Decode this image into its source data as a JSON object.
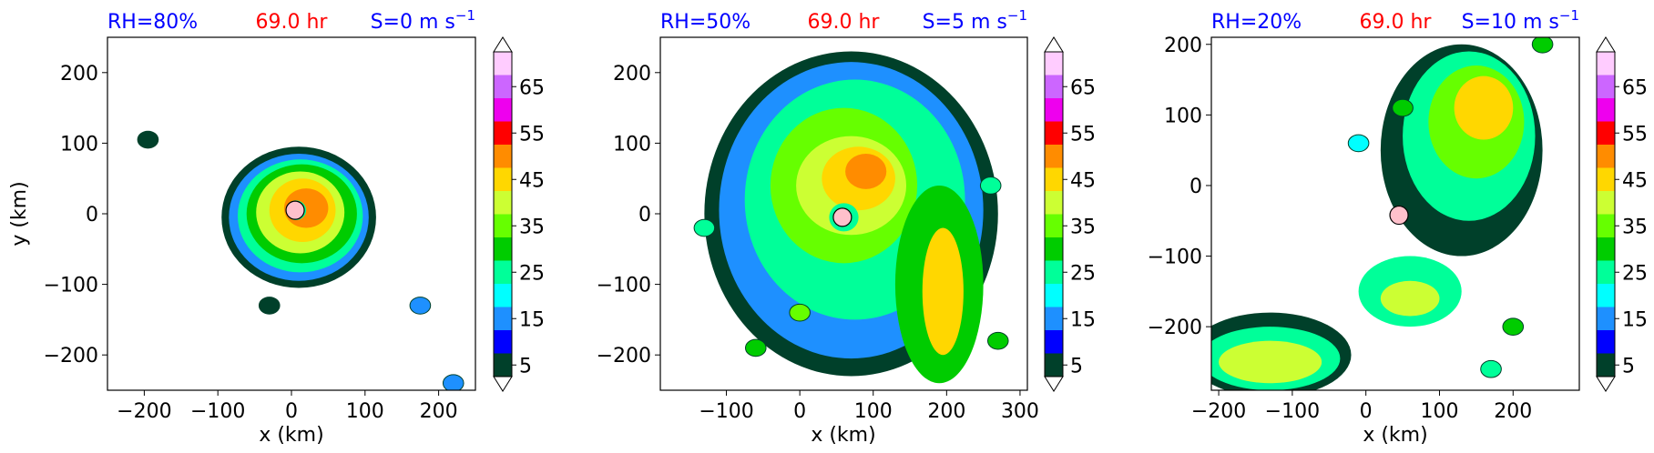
{
  "colorbar": {
    "levels": [
      5,
      10,
      15,
      20,
      25,
      30,
      35,
      40,
      45,
      50,
      55,
      60,
      65,
      70
    ],
    "tick_labels": [
      "5",
      "15",
      "25",
      "35",
      "45",
      "55",
      "65"
    ],
    "colors": [
      "#00402a",
      "#0000ff",
      "#1e90ff",
      "#00ffff",
      "#00ff99",
      "#00cc00",
      "#66ff00",
      "#ccff33",
      "#ffd700",
      "#ff8c00",
      "#ff0000",
      "#ee00ee",
      "#cc66ff",
      "#ffccff"
    ]
  },
  "chart_data": [
    {
      "type": "heatmap",
      "title_left": "RH=80%",
      "title_center": "69.0 hr",
      "title_right": "S=0 m s",
      "title_right_sup": "−1",
      "xlabel": "x (km)",
      "ylabel": "y (km)",
      "xlim": [
        -250,
        250
      ],
      "ylim": [
        -250,
        250
      ],
      "xticks": [
        -200,
        -100,
        0,
        100,
        200
      ],
      "xtick_labels": [
        "−200",
        "−100",
        "0",
        "100",
        "200"
      ],
      "yticks": [
        -200,
        -100,
        0,
        100,
        200
      ],
      "ytick_labels": [
        "−200",
        "−100",
        "0",
        "100",
        "200"
      ],
      "center_marker": [
        5,
        5
      ],
      "bands": [
        {
          "level": 5,
          "cx": 10,
          "cy": -5,
          "rx": 105,
          "ry": 100
        },
        {
          "level": 15,
          "cx": 10,
          "cy": -5,
          "rx": 95,
          "ry": 90
        },
        {
          "level": 25,
          "cx": 12,
          "cy": -3,
          "rx": 85,
          "ry": 80
        },
        {
          "level": 30,
          "cx": 14,
          "cy": 0,
          "rx": 75,
          "ry": 70
        },
        {
          "level": 40,
          "cx": 12,
          "cy": 2,
          "rx": 60,
          "ry": 58
        },
        {
          "level": 45,
          "cx": 15,
          "cy": 5,
          "rx": 45,
          "ry": 45
        },
        {
          "level": 50,
          "cx": 20,
          "cy": 8,
          "rx": 30,
          "ry": 28
        },
        {
          "level": 25,
          "cx": 6,
          "cy": 5,
          "rx": 14,
          "ry": 14
        }
      ],
      "cells": [
        {
          "x": -195,
          "y": 105,
          "level": 5
        },
        {
          "x": 175,
          "y": -130,
          "level": 15
        },
        {
          "x": 220,
          "y": -240,
          "level": 15
        },
        {
          "x": -30,
          "y": -130,
          "level": 5
        }
      ]
    },
    {
      "type": "heatmap",
      "title_left": "RH=50%",
      "title_center": "69.0 hr",
      "title_right": "S=5 m s",
      "title_right_sup": "−1",
      "xlabel": "x (km)",
      "ylabel": "",
      "xlim": [
        -190,
        310
      ],
      "ylim": [
        -250,
        250
      ],
      "xticks": [
        -100,
        0,
        100,
        200,
        300
      ],
      "xtick_labels": [
        "−100",
        "0",
        "100",
        "200",
        "300"
      ],
      "yticks": [
        -200,
        -100,
        0,
        100,
        200
      ],
      "ytick_labels": [
        "−200",
        "−100",
        "0",
        "100",
        "200"
      ],
      "center_marker": [
        58,
        -5
      ],
      "bands": [
        {
          "level": 5,
          "cx": 70,
          "cy": 0,
          "rx": 200,
          "ry": 230
        },
        {
          "level": 15,
          "cx": 70,
          "cy": 5,
          "rx": 180,
          "ry": 210
        },
        {
          "level": 25,
          "cx": 75,
          "cy": 20,
          "rx": 150,
          "ry": 170
        },
        {
          "level": 35,
          "cx": 60,
          "cy": 40,
          "rx": 100,
          "ry": 110
        },
        {
          "level": 40,
          "cx": 70,
          "cy": 40,
          "rx": 75,
          "ry": 70
        },
        {
          "level": 45,
          "cx": 80,
          "cy": 50,
          "rx": 50,
          "ry": 45
        },
        {
          "level": 50,
          "cx": 90,
          "cy": 60,
          "rx": 28,
          "ry": 25
        },
        {
          "level": 30,
          "cx": 190,
          "cy": -100,
          "rx": 60,
          "ry": 140
        },
        {
          "level": 45,
          "cx": 195,
          "cy": -110,
          "rx": 28,
          "ry": 90
        },
        {
          "level": 25,
          "cx": 60,
          "cy": -5,
          "rx": 20,
          "ry": 20
        }
      ],
      "cells": [
        {
          "x": -130,
          "y": -20,
          "level": 25
        },
        {
          "x": -60,
          "y": -190,
          "level": 30
        },
        {
          "x": 270,
          "y": -180,
          "level": 30
        },
        {
          "x": 0,
          "y": -140,
          "level": 35
        },
        {
          "x": 260,
          "y": 40,
          "level": 25
        }
      ]
    },
    {
      "type": "heatmap",
      "title_left": "RH=20%",
      "title_center": "69.0 hr",
      "title_right": "S=10 m s",
      "title_right_sup": "−1",
      "xlabel": "x (km)",
      "ylabel": "",
      "xlim": [
        -210,
        290
      ],
      "ylim": [
        -290,
        210
      ],
      "xticks": [
        -200,
        -100,
        0,
        100,
        200
      ],
      "xtick_labels": [
        "−200",
        "−100",
        "0",
        "100",
        "200"
      ],
      "yticks": [
        -200,
        -100,
        0,
        100,
        200
      ],
      "ytick_labels": [
        "−200",
        "−100",
        "0",
        "100",
        "200"
      ],
      "center_marker": [
        45,
        -42
      ],
      "bands": [
        {
          "level": 5,
          "cx": -130,
          "cy": -240,
          "rx": 110,
          "ry": 60
        },
        {
          "level": 25,
          "cx": -130,
          "cy": -245,
          "rx": 95,
          "ry": 45
        },
        {
          "level": 40,
          "cx": -130,
          "cy": -250,
          "rx": 70,
          "ry": 30
        },
        {
          "level": 5,
          "cx": 130,
          "cy": 50,
          "rx": 110,
          "ry": 150
        },
        {
          "level": 25,
          "cx": 140,
          "cy": 70,
          "rx": 90,
          "ry": 120
        },
        {
          "level": 35,
          "cx": 150,
          "cy": 90,
          "rx": 65,
          "ry": 80
        },
        {
          "level": 45,
          "cx": 160,
          "cy": 110,
          "rx": 40,
          "ry": 45
        },
        {
          "level": 25,
          "cx": 60,
          "cy": -150,
          "rx": 70,
          "ry": 50
        },
        {
          "level": 40,
          "cx": 60,
          "cy": -160,
          "rx": 40,
          "ry": 25
        }
      ],
      "cells": [
        {
          "x": 50,
          "y": 110,
          "level": 30
        },
        {
          "x": -10,
          "y": 60,
          "level": 20
        },
        {
          "x": 200,
          "y": -200,
          "level": 30
        },
        {
          "x": 170,
          "y": -260,
          "level": 25
        },
        {
          "x": 240,
          "y": 200,
          "level": 30
        }
      ]
    }
  ]
}
